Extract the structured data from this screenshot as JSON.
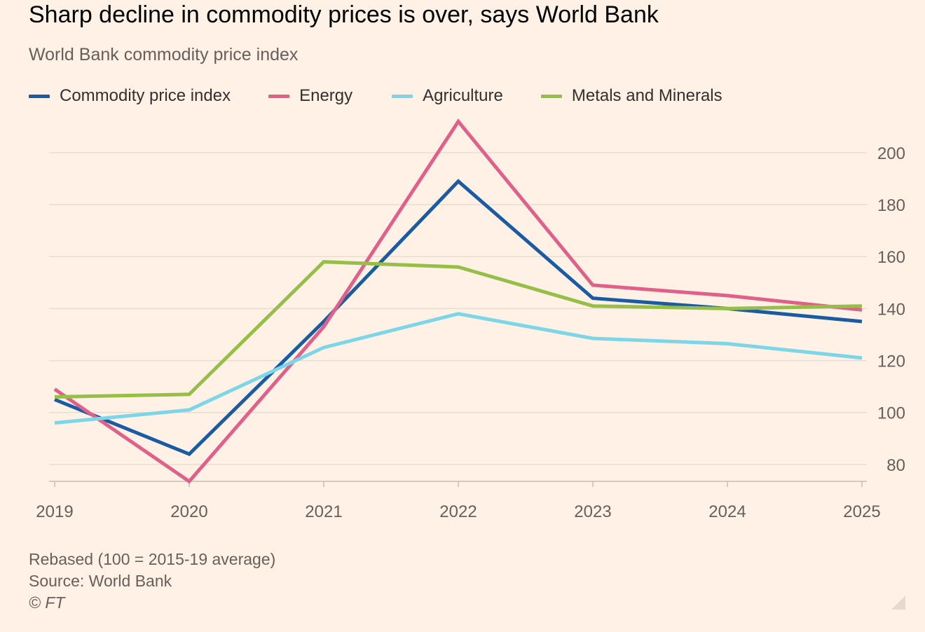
{
  "header": {
    "title": "Sharp decline in commodity prices is over, says World Bank",
    "subtitle": "World Bank commodity price index"
  },
  "footer": {
    "note": "Rebased (100 = 2015-19 average)",
    "source": "Source: World Bank",
    "credit": "© FT"
  },
  "colors": {
    "background": "#fff1e5",
    "gridline": "#e9ddd2",
    "axis": "#c9bdb3"
  },
  "chart_data": {
    "type": "line",
    "title": "Sharp decline in commodity prices is over, says World Bank",
    "subtitle": "World Bank commodity price index",
    "xlabel": "",
    "ylabel": "",
    "x": [
      "2019",
      "2020",
      "2021",
      "2022",
      "2023",
      "2024",
      "2025"
    ],
    "y_ticks": [
      80,
      100,
      120,
      140,
      160,
      180,
      200
    ],
    "ylim": [
      73.5,
      214
    ],
    "y_axis_side": "right",
    "grid": true,
    "legend_position": "top",
    "series": [
      {
        "name": "Commodity price index",
        "color": "#1a5ba3",
        "values": [
          105,
          84,
          135,
          189,
          144,
          140,
          135
        ]
      },
      {
        "name": "Energy",
        "color": "#e0608a",
        "values": [
          109,
          73.5,
          133,
          212,
          149,
          145,
          139.5
        ]
      },
      {
        "name": "Agriculture",
        "color": "#7dd6e8",
        "values": [
          96,
          101,
          125,
          138,
          128.5,
          126.5,
          121
        ]
      },
      {
        "name": "Metals and Minerals",
        "color": "#96bf48",
        "values": [
          106,
          107,
          158,
          156,
          141,
          140,
          141
        ]
      }
    ]
  }
}
